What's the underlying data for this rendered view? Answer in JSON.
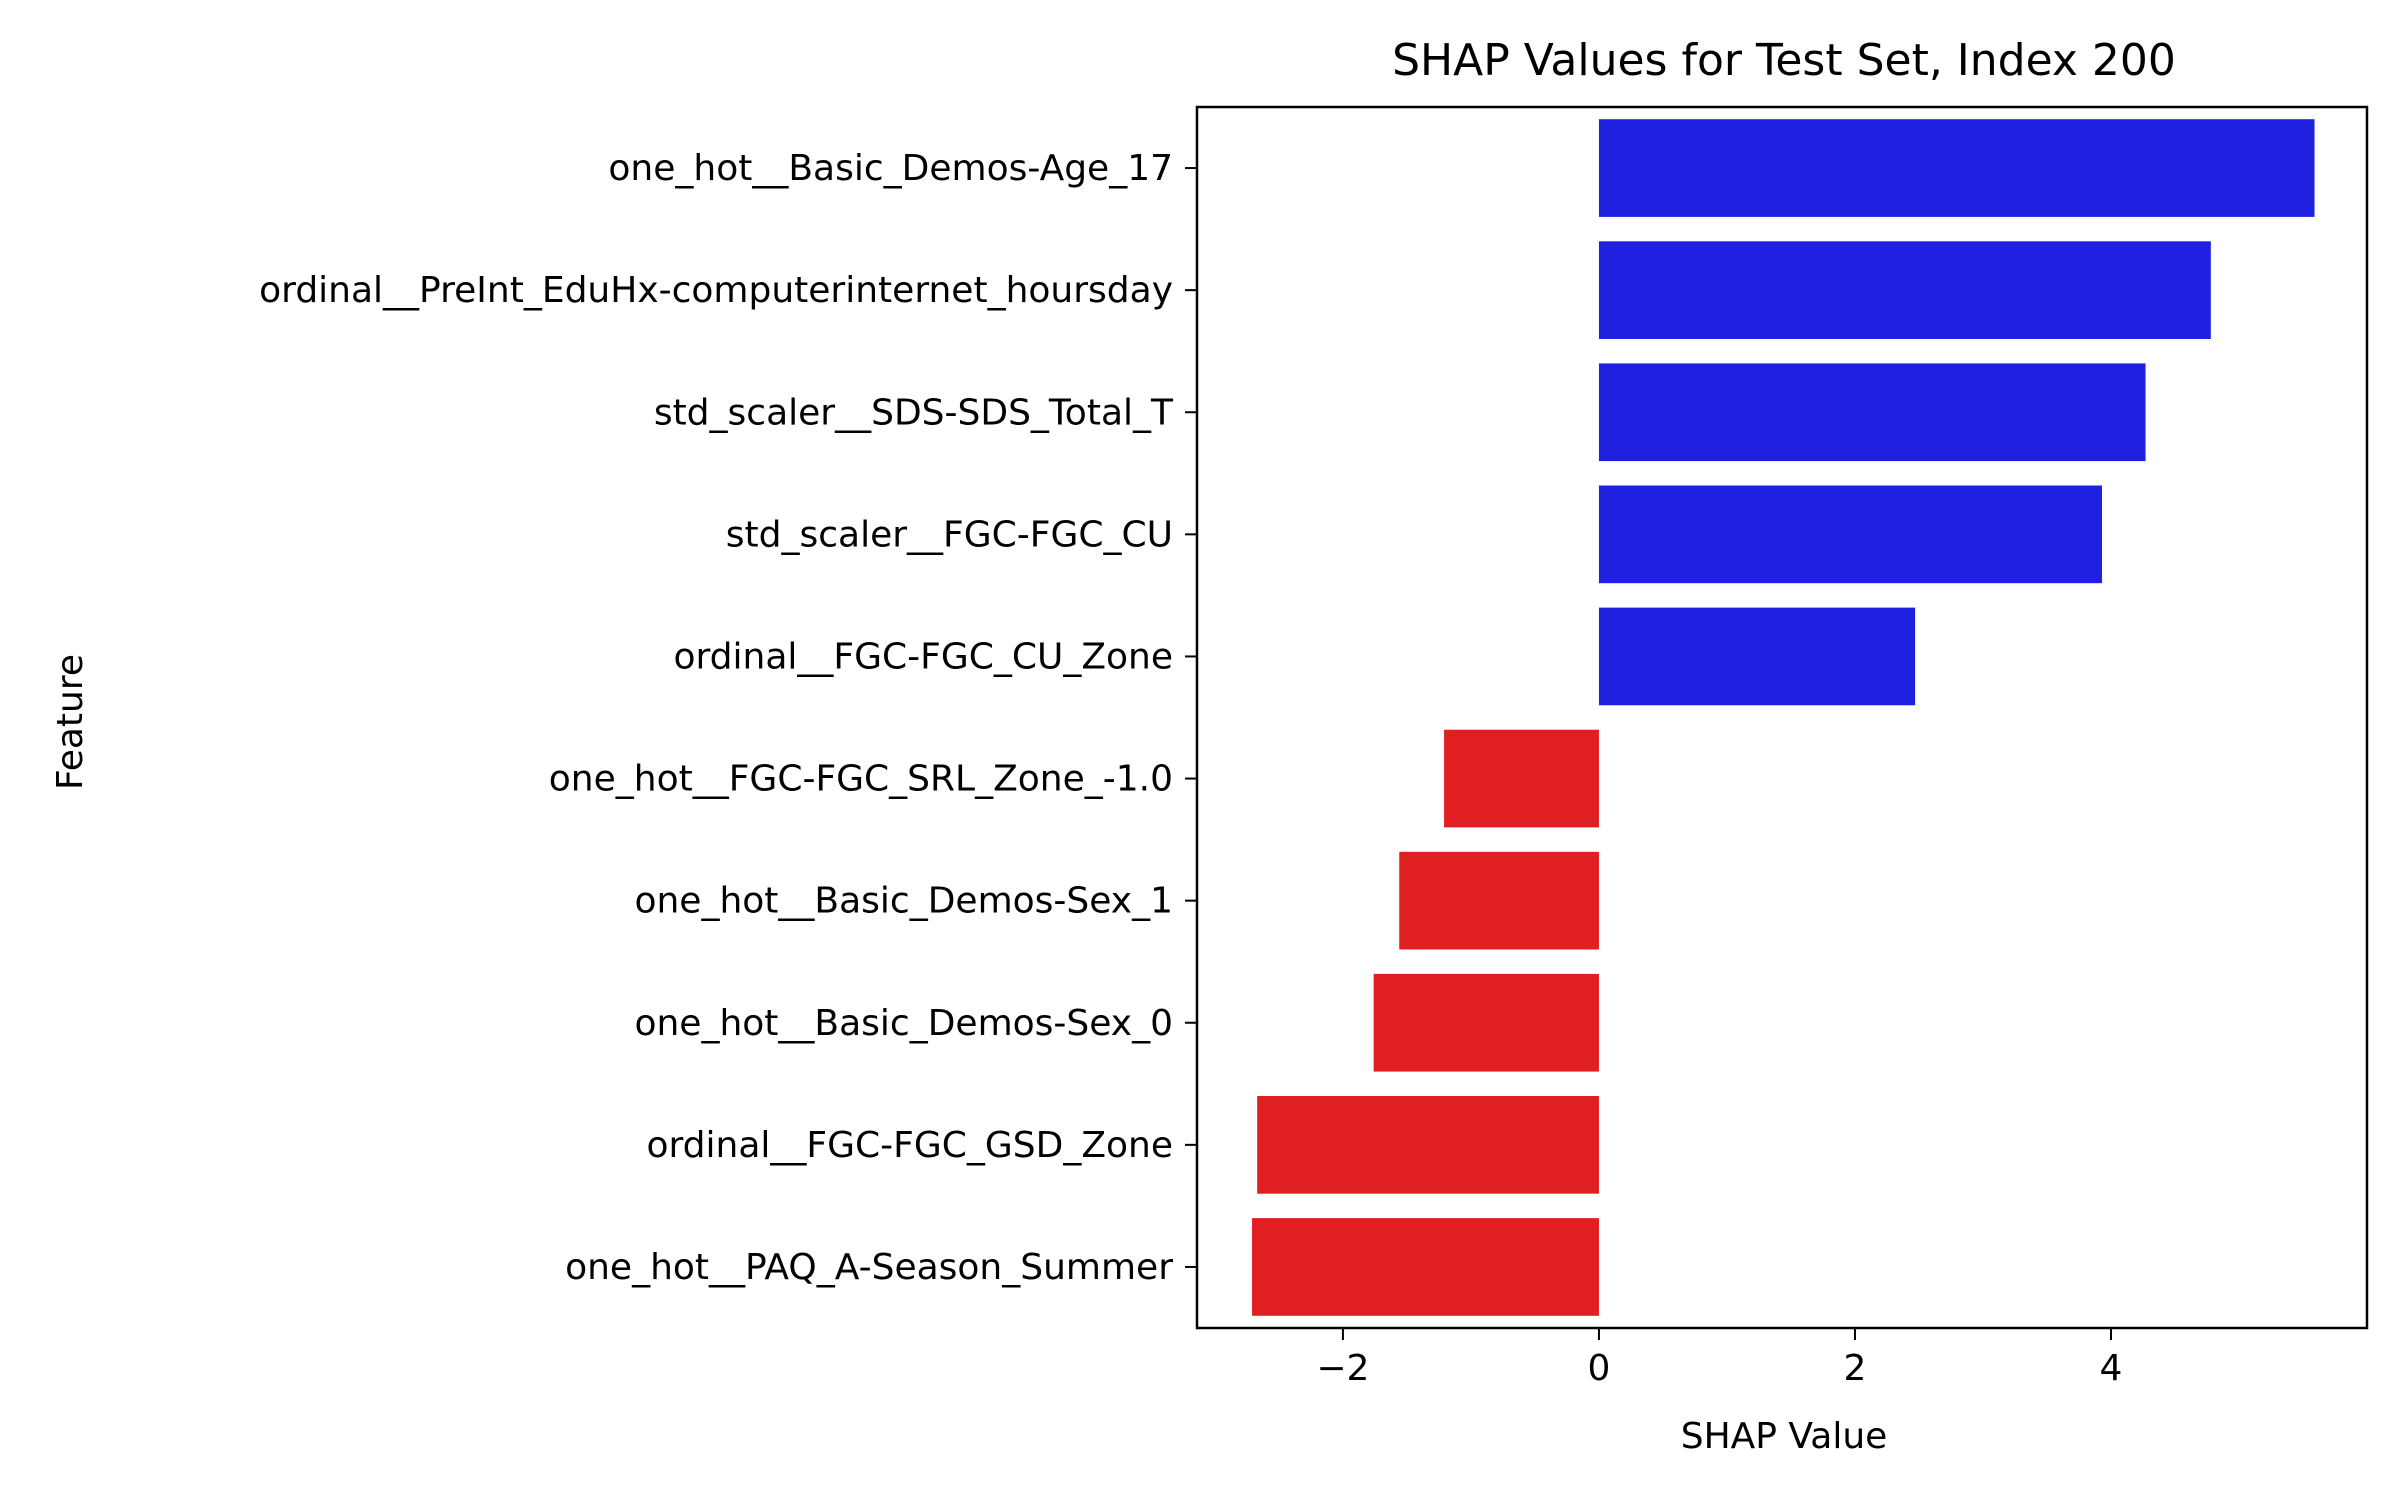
{
  "chart_data": {
    "type": "bar",
    "orientation": "horizontal",
    "title": "SHAP Values for Test Set, Index 200",
    "xlabel": "SHAP Value",
    "ylabel": "Feature",
    "categories": [
      "one_hot__Basic_Demos-Age_17",
      "ordinal__PreInt_EduHx-computerinternet_hoursday",
      "std_scaler__SDS-SDS_Total_T",
      "std_scaler__FGC-FGC_CU",
      "ordinal__FGC-FGC_CU_Zone",
      "one_hot__FGC-FGC_SRL_Zone_-1.0",
      "one_hot__Basic_Demos-Sex_1",
      "one_hot__Basic_Demos-Sex_0",
      "ordinal__FGC-FGC_GSD_Zone",
      "one_hot__PAQ_A-Season_Summer"
    ],
    "values": [
      5.59,
      4.78,
      4.27,
      3.93,
      2.47,
      -1.21,
      -1.56,
      -1.76,
      -2.67,
      -2.71
    ],
    "xlim": [
      -3.14,
      6.0
    ],
    "xticks": [
      -2,
      0,
      2,
      4
    ],
    "xtick_labels": [
      "−2",
      "0",
      "2",
      "4"
    ],
    "positive_color": "#2020e0",
    "negative_color": "#e02020",
    "grid": false,
    "legend": "none"
  }
}
